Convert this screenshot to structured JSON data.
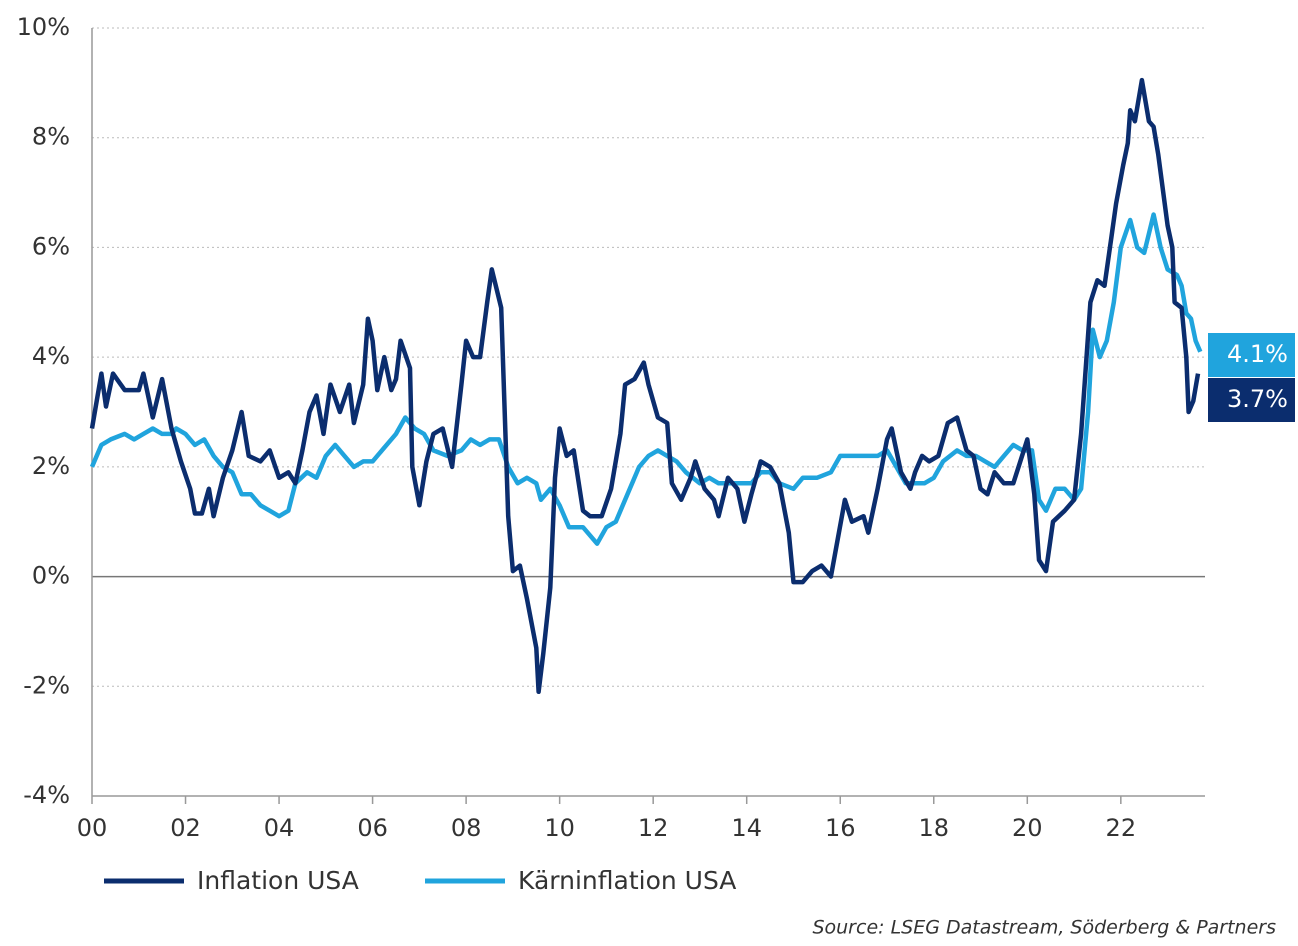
{
  "chart_data": {
    "type": "line",
    "source": "Source: LSEG Datastream, Söderberg & Partners",
    "xlim": [
      0,
      23.8
    ],
    "ylim": [
      -4,
      10
    ],
    "xticks": [
      {
        "value": 0,
        "label": "00"
      },
      {
        "value": 2,
        "label": "02"
      },
      {
        "value": 4,
        "label": "04"
      },
      {
        "value": 6,
        "label": "06"
      },
      {
        "value": 8,
        "label": "08"
      },
      {
        "value": 10,
        "label": "10"
      },
      {
        "value": 12,
        "label": "12"
      },
      {
        "value": 14,
        "label": "14"
      },
      {
        "value": 16,
        "label": "16"
      },
      {
        "value": 18,
        "label": "18"
      },
      {
        "value": 20,
        "label": "20"
      },
      {
        "value": 22,
        "label": "22"
      }
    ],
    "yticks": [
      {
        "value": -4,
        "label": "-4%"
      },
      {
        "value": -2,
        "label": "-2%"
      },
      {
        "value": 0,
        "label": "0%"
      },
      {
        "value": 2,
        "label": "2%"
      },
      {
        "value": 4,
        "label": "4%"
      },
      {
        "value": 6,
        "label": "6%"
      },
      {
        "value": 8,
        "label": "8%"
      },
      {
        "value": 10,
        "label": "10%"
      }
    ],
    "grid": true,
    "series": [
      {
        "name": "Inflation USA",
        "color": "#0b2d6e",
        "end_label": "3.7%",
        "x": [
          0,
          0.2,
          0.3,
          0.45,
          0.7,
          1.0,
          1.1,
          1.3,
          1.5,
          1.7,
          1.9,
          2.1,
          2.2,
          2.35,
          2.5,
          2.6,
          2.8,
          3.0,
          3.2,
          3.35,
          3.6,
          3.8,
          4.0,
          4.2,
          4.35,
          4.5,
          4.65,
          4.8,
          4.95,
          5.1,
          5.3,
          5.5,
          5.6,
          5.8,
          5.9,
          6.0,
          6.1,
          6.25,
          6.4,
          6.5,
          6.6,
          6.8,
          6.85,
          7.0,
          7.15,
          7.3,
          7.5,
          7.7,
          7.9,
          8.0,
          8.15,
          8.3,
          8.45,
          8.55,
          8.75,
          8.9,
          9.0,
          9.15,
          9.3,
          9.5,
          9.55,
          9.65,
          9.8,
          9.9,
          10.0,
          10.15,
          10.3,
          10.5,
          10.65,
          10.9,
          11.1,
          11.3,
          11.4,
          11.6,
          11.8,
          11.9,
          12.1,
          12.3,
          12.4,
          12.6,
          12.8,
          12.9,
          13.1,
          13.3,
          13.4,
          13.6,
          13.8,
          13.95,
          14.1,
          14.3,
          14.5,
          14.7,
          14.9,
          15.0,
          15.2,
          15.4,
          15.6,
          15.8,
          15.95,
          16.1,
          16.25,
          16.5,
          16.6,
          16.8,
          17.0,
          17.1,
          17.3,
          17.5,
          17.6,
          17.75,
          17.9,
          18.1,
          18.3,
          18.5,
          18.7,
          18.85,
          19.0,
          19.15,
          19.3,
          19.5,
          19.7,
          19.85,
          20.0,
          20.15,
          20.25,
          20.4,
          20.55,
          20.8,
          21.0,
          21.15,
          21.35,
          21.5,
          21.65,
          21.8,
          21.9,
          22.05,
          22.15,
          22.2,
          22.3,
          22.45,
          22.6,
          22.7,
          22.8,
          23.0,
          23.1,
          23.15,
          23.3,
          23.4,
          23.45,
          23.55,
          23.65
        ],
        "values": [
          2.7,
          3.7,
          3.1,
          3.7,
          3.4,
          3.4,
          3.7,
          2.9,
          3.6,
          2.7,
          2.1,
          1.6,
          1.15,
          1.15,
          1.6,
          1.1,
          1.8,
          2.3,
          3.0,
          2.2,
          2.1,
          2.3,
          1.8,
          1.9,
          1.7,
          2.3,
          3.0,
          3.3,
          2.6,
          3.5,
          3.0,
          3.5,
          2.8,
          3.5,
          4.7,
          4.3,
          3.4,
          4.0,
          3.4,
          3.6,
          4.3,
          3.8,
          2.0,
          1.3,
          2.1,
          2.6,
          2.7,
          2.0,
          3.5,
          4.3,
          4.0,
          4.0,
          5.0,
          5.6,
          4.9,
          1.1,
          0.1,
          0.2,
          -0.4,
          -1.3,
          -2.1,
          -1.4,
          -0.2,
          1.8,
          2.7,
          2.2,
          2.3,
          1.2,
          1.1,
          1.1,
          1.6,
          2.6,
          3.5,
          3.6,
          3.9,
          3.5,
          2.9,
          2.8,
          1.7,
          1.4,
          1.8,
          2.1,
          1.6,
          1.4,
          1.1,
          1.8,
          1.6,
          1.0,
          1.5,
          2.1,
          2.0,
          1.7,
          0.8,
          -0.1,
          -0.1,
          0.1,
          0.2,
          0.0,
          0.7,
          1.4,
          1.0,
          1.1,
          0.8,
          1.6,
          2.5,
          2.7,
          1.9,
          1.6,
          1.9,
          2.2,
          2.1,
          2.2,
          2.8,
          2.9,
          2.3,
          2.2,
          1.6,
          1.5,
          1.9,
          1.7,
          1.7,
          2.1,
          2.5,
          1.5,
          0.3,
          0.1,
          1.0,
          1.2,
          1.4,
          2.6,
          5.0,
          5.4,
          5.3,
          6.2,
          6.8,
          7.5,
          7.9,
          8.5,
          8.3,
          9.05,
          8.3,
          8.2,
          7.7,
          6.4,
          6.0,
          5.0,
          4.9,
          4.0,
          3.0,
          3.2,
          3.7
        ]
      },
      {
        "name": "Kärninflation USA",
        "color": "#20a4dd",
        "end_label": "4.1%",
        "x": [
          0,
          0.2,
          0.4,
          0.7,
          0.9,
          1.1,
          1.3,
          1.5,
          1.7,
          1.8,
          2.0,
          2.2,
          2.4,
          2.6,
          2.8,
          3.0,
          3.2,
          3.4,
          3.6,
          3.8,
          4.0,
          4.2,
          4.35,
          4.6,
          4.8,
          5.0,
          5.2,
          5.4,
          5.6,
          5.8,
          6.0,
          6.3,
          6.5,
          6.7,
          6.9,
          7.1,
          7.3,
          7.6,
          7.9,
          8.1,
          8.3,
          8.5,
          8.7,
          8.9,
          9.1,
          9.3,
          9.5,
          9.6,
          9.8,
          10.0,
          10.2,
          10.5,
          10.8,
          11.0,
          11.2,
          11.5,
          11.7,
          11.9,
          12.1,
          12.3,
          12.5,
          12.7,
          13.0,
          13.2,
          13.4,
          13.6,
          13.9,
          14.1,
          14.3,
          14.5,
          14.7,
          15.0,
          15.2,
          15.5,
          15.8,
          16.0,
          16.2,
          16.5,
          16.8,
          17.0,
          17.2,
          17.4,
          17.6,
          17.8,
          18.0,
          18.2,
          18.5,
          18.7,
          18.9,
          19.1,
          19.3,
          19.5,
          19.7,
          19.9,
          20.1,
          20.25,
          20.4,
          20.6,
          20.8,
          21.0,
          21.15,
          21.3,
          21.4,
          21.55,
          21.7,
          21.85,
          22.0,
          22.2,
          22.35,
          22.5,
          22.7,
          22.85,
          23.0,
          23.2,
          23.3,
          23.4,
          23.5,
          23.6,
          23.7
        ],
        "values": [
          2.0,
          2.4,
          2.5,
          2.6,
          2.5,
          2.6,
          2.7,
          2.6,
          2.6,
          2.7,
          2.6,
          2.4,
          2.5,
          2.2,
          2.0,
          1.9,
          1.5,
          1.5,
          1.3,
          1.2,
          1.1,
          1.2,
          1.7,
          1.9,
          1.8,
          2.2,
          2.4,
          2.2,
          2.0,
          2.1,
          2.1,
          2.4,
          2.6,
          2.9,
          2.7,
          2.6,
          2.3,
          2.2,
          2.3,
          2.5,
          2.4,
          2.5,
          2.5,
          2.0,
          1.7,
          1.8,
          1.7,
          1.4,
          1.6,
          1.3,
          0.9,
          0.9,
          0.6,
          0.9,
          1.0,
          1.6,
          2.0,
          2.2,
          2.3,
          2.2,
          2.1,
          1.9,
          1.7,
          1.8,
          1.7,
          1.7,
          1.7,
          1.7,
          1.9,
          1.9,
          1.7,
          1.6,
          1.8,
          1.8,
          1.9,
          2.2,
          2.2,
          2.2,
          2.2,
          2.3,
          2.0,
          1.7,
          1.7,
          1.7,
          1.8,
          2.1,
          2.3,
          2.2,
          2.2,
          2.1,
          2.0,
          2.2,
          2.4,
          2.3,
          2.3,
          1.4,
          1.2,
          1.6,
          1.6,
          1.4,
          1.6,
          3.0,
          4.5,
          4.0,
          4.3,
          5.0,
          6.0,
          6.5,
          6.0,
          5.9,
          6.6,
          6.0,
          5.6,
          5.5,
          5.3,
          4.8,
          4.7,
          4.3,
          4.1
        ]
      }
    ]
  }
}
